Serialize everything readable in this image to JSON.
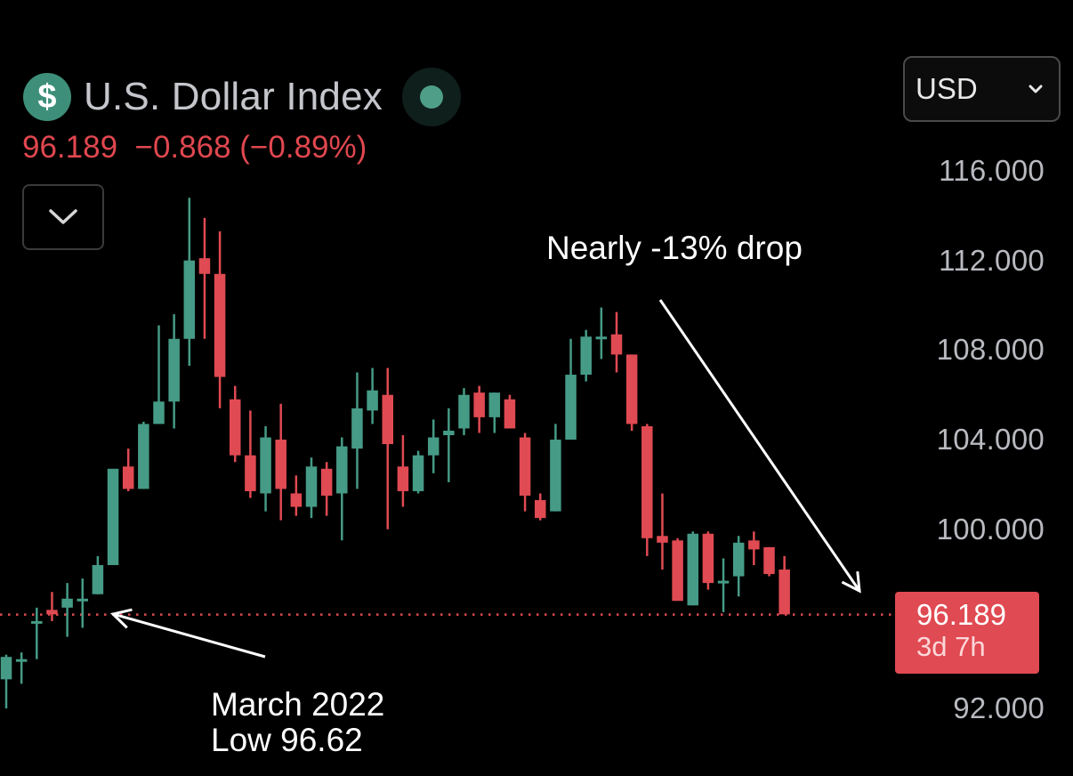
{
  "header": {
    "symbol_icon": "dollar-sign-icon",
    "title": "U.S. Dollar Index",
    "status_icon": "market-status-dot-icon",
    "last_price": "96.189",
    "change": "−0.868",
    "change_percent": "(−0.89%)",
    "collapse_icon": "chevron-down-icon"
  },
  "currency_selector": {
    "value": "USD",
    "icon": "chevron-down-icon"
  },
  "price_tag": {
    "price": "96.189",
    "countdown": "3d 7h"
  },
  "annotations": {
    "drop_label": "Nearly -13% drop",
    "low_label_line1": "March 2022",
    "low_label_line2": "Low 96.62"
  },
  "colors": {
    "up": "#459b86",
    "down": "#e04a52",
    "background": "#000000",
    "axis_text": "#b8bac0",
    "annotation": "#ffffff"
  },
  "chart_data": {
    "type": "candlestick",
    "title": "U.S. Dollar Index",
    "xlabel": "",
    "ylabel": "USD",
    "ylim": [
      90.9,
      119.3
    ],
    "y_ticks": [
      "116.000",
      "112.000",
      "108.000",
      "104.000",
      "100.000",
      "92.000"
    ],
    "grid": false,
    "last_price_line": 96.189,
    "candles": [
      {
        "o": 93.3,
        "h": 94.4,
        "l": 92.0,
        "c": 94.3
      },
      {
        "o": 94.2,
        "h": 94.5,
        "l": 93.1,
        "c": 94.2
      },
      {
        "o": 95.9,
        "h": 96.5,
        "l": 94.2,
        "c": 95.9
      },
      {
        "o": 96.4,
        "h": 97.2,
        "l": 95.9,
        "c": 96.2
      },
      {
        "o": 96.5,
        "h": 97.6,
        "l": 95.2,
        "c": 96.9
      },
      {
        "o": 96.9,
        "h": 97.8,
        "l": 95.6,
        "c": 96.9
      },
      {
        "o": 97.1,
        "h": 98.8,
        "l": 97.1,
        "c": 98.4
      },
      {
        "o": 98.4,
        "h": 101.0,
        "l": 98.4,
        "c": 102.7
      },
      {
        "o": 102.8,
        "h": 103.6,
        "l": 101.7,
        "c": 101.8
      },
      {
        "o": 101.8,
        "h": 104.8,
        "l": 101.8,
        "c": 104.7
      },
      {
        "o": 104.7,
        "h": 109.1,
        "l": 104.7,
        "c": 105.7
      },
      {
        "o": 105.7,
        "h": 109.6,
        "l": 104.5,
        "c": 108.5
      },
      {
        "o": 108.5,
        "h": 114.8,
        "l": 107.3,
        "c": 112.0
      },
      {
        "o": 112.1,
        "h": 113.9,
        "l": 108.5,
        "c": 111.4
      },
      {
        "o": 111.4,
        "h": 113.3,
        "l": 105.4,
        "c": 106.8
      },
      {
        "o": 105.8,
        "h": 106.4,
        "l": 103.0,
        "c": 103.3
      },
      {
        "o": 103.3,
        "h": 105.3,
        "l": 101.4,
        "c": 101.7
      },
      {
        "o": 101.6,
        "h": 104.6,
        "l": 100.8,
        "c": 104.1
      },
      {
        "o": 104.0,
        "h": 105.6,
        "l": 100.4,
        "c": 101.8
      },
      {
        "o": 101.6,
        "h": 102.4,
        "l": 100.6,
        "c": 101.0
      },
      {
        "o": 101.0,
        "h": 103.2,
        "l": 100.5,
        "c": 102.8
      },
      {
        "o": 102.7,
        "h": 103.0,
        "l": 100.6,
        "c": 101.5
      },
      {
        "o": 101.6,
        "h": 104.1,
        "l": 99.5,
        "c": 103.7
      },
      {
        "o": 103.6,
        "h": 107.0,
        "l": 101.8,
        "c": 105.4
      },
      {
        "o": 105.3,
        "h": 107.2,
        "l": 104.7,
        "c": 106.2
      },
      {
        "o": 106.0,
        "h": 107.2,
        "l": 100.0,
        "c": 103.8
      },
      {
        "o": 102.8,
        "h": 104.2,
        "l": 101.0,
        "c": 101.7
      },
      {
        "o": 101.7,
        "h": 103.5,
        "l": 101.6,
        "c": 103.3
      },
      {
        "o": 103.3,
        "h": 104.9,
        "l": 102.5,
        "c": 104.1
      },
      {
        "o": 104.2,
        "h": 105.4,
        "l": 102.1,
        "c": 104.4
      },
      {
        "o": 104.5,
        "h": 106.3,
        "l": 104.2,
        "c": 106.0
      },
      {
        "o": 106.1,
        "h": 106.4,
        "l": 104.3,
        "c": 105.0
      },
      {
        "o": 105.0,
        "h": 106.1,
        "l": 104.3,
        "c": 106.1
      },
      {
        "o": 105.8,
        "h": 106.0,
        "l": 104.8,
        "c": 104.5
      },
      {
        "o": 104.1,
        "h": 104.3,
        "l": 100.8,
        "c": 101.5
      },
      {
        "o": 101.3,
        "h": 101.6,
        "l": 100.4,
        "c": 100.5
      },
      {
        "o": 100.8,
        "h": 104.7,
        "l": 100.8,
        "c": 104.0
      },
      {
        "o": 104.0,
        "h": 108.5,
        "l": 104.1,
        "c": 106.9
      },
      {
        "o": 106.9,
        "h": 108.9,
        "l": 106.6,
        "c": 108.6
      },
      {
        "o": 108.6,
        "h": 109.9,
        "l": 107.6,
        "c": 108.6
      },
      {
        "o": 108.7,
        "h": 109.7,
        "l": 107.0,
        "c": 107.8
      },
      {
        "o": 107.8,
        "h": 107.8,
        "l": 104.4,
        "c": 104.7
      },
      {
        "o": 104.6,
        "h": 104.7,
        "l": 98.8,
        "c": 99.6
      },
      {
        "o": 99.7,
        "h": 101.6,
        "l": 98.2,
        "c": 99.4
      },
      {
        "o": 99.5,
        "h": 99.6,
        "l": 96.9,
        "c": 96.8
      },
      {
        "o": 96.6,
        "h": 99.9,
        "l": 96.6,
        "c": 99.8
      },
      {
        "o": 99.8,
        "h": 99.9,
        "l": 97.3,
        "c": 97.6
      },
      {
        "o": 97.7,
        "h": 98.7,
        "l": 96.3,
        "c": 97.7
      },
      {
        "o": 97.9,
        "h": 99.7,
        "l": 97.0,
        "c": 99.4
      },
      {
        "o": 99.5,
        "h": 99.9,
        "l": 98.4,
        "c": 99.1
      },
      {
        "o": 99.2,
        "h": 99.2,
        "l": 97.9,
        "c": 98.0
      },
      {
        "o": 98.2,
        "h": 98.8,
        "l": 96.2,
        "c": 96.2
      }
    ],
    "annotations": [
      {
        "text": "Nearly -13% drop",
        "type": "arrow",
        "from": "peak ~109.9",
        "to": "~97"
      },
      {
        "text": "March 2022 Low 96.62",
        "type": "arrow",
        "points_to": 96.62
      }
    ]
  }
}
